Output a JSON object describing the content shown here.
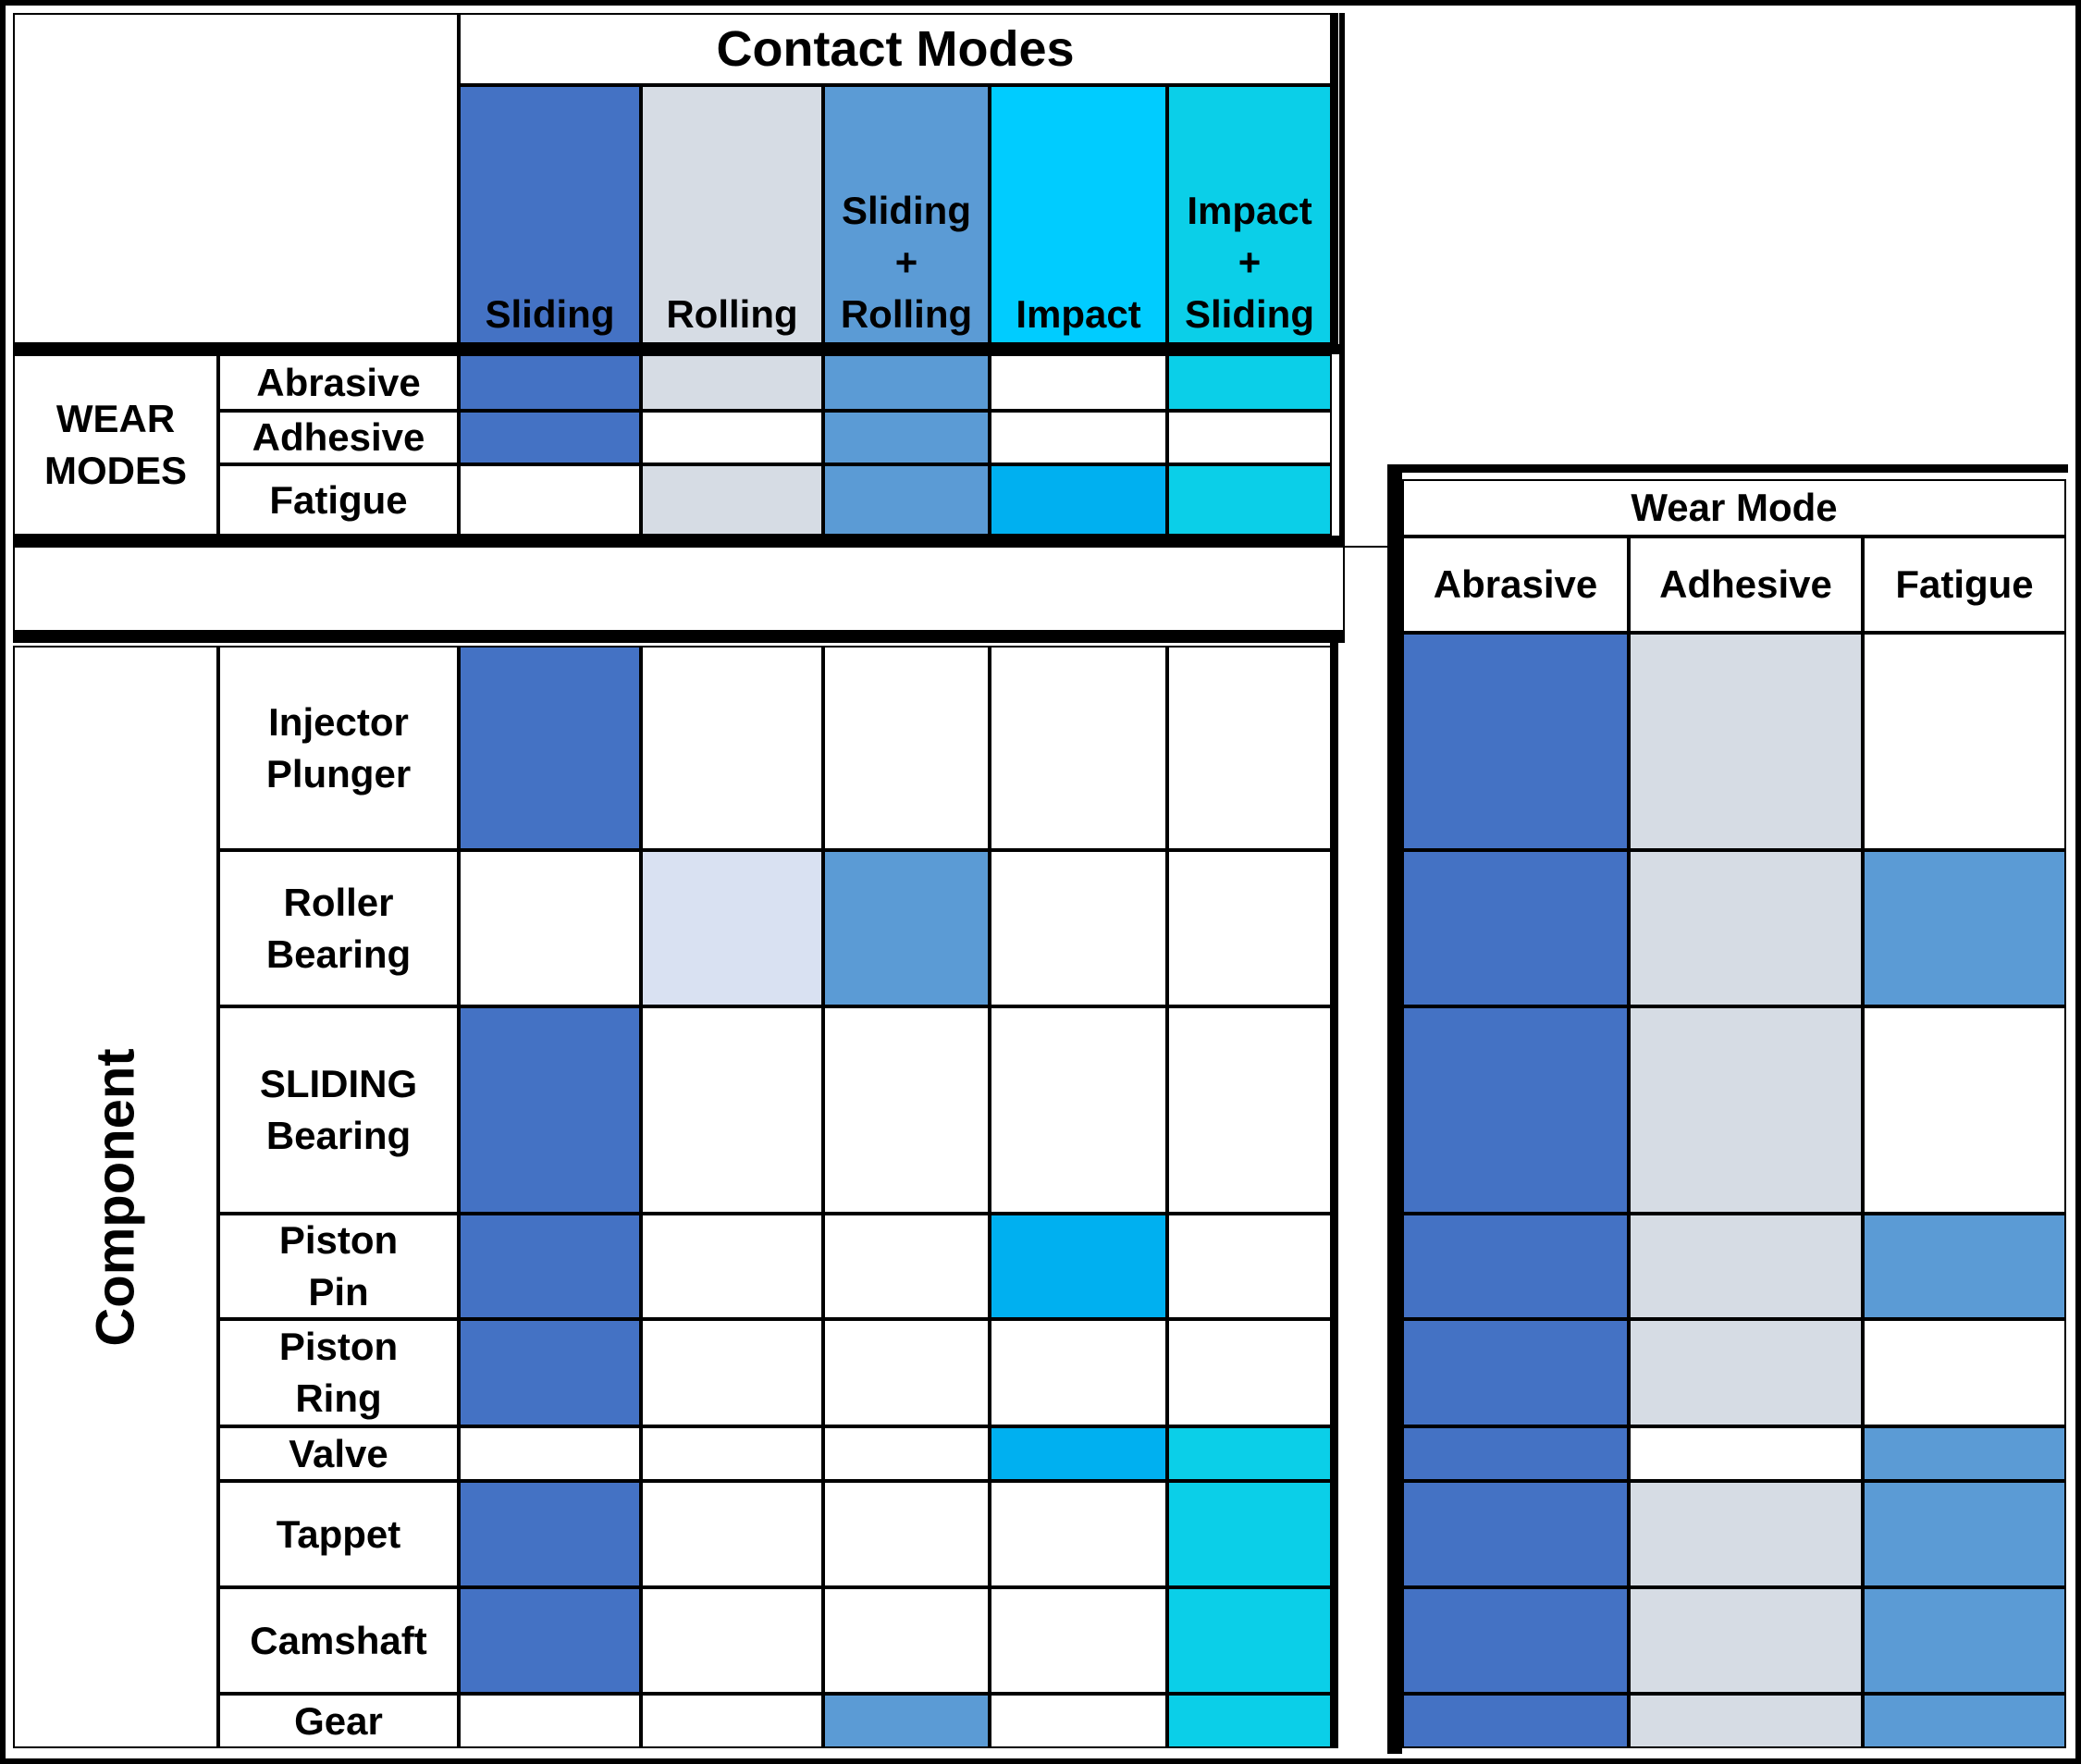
{
  "colors": {
    "sliding": "#4472C4",
    "rolling": "#D6DCE4",
    "rolling_light": "#D9E1F2",
    "sliding_rolling": "#5B9BD5",
    "impact": "#00CCFF",
    "impact_cell": "#00B0F0",
    "impact_sliding": "#0BCFE8",
    "none": "#FFFFFF"
  },
  "contact_modes": {
    "title": "Contact Modes",
    "columns": [
      {
        "key": "sliding",
        "lines": [
          "Sliding"
        ]
      },
      {
        "key": "rolling",
        "lines": [
          "Rolling"
        ]
      },
      {
        "key": "sliding_rolling",
        "lines": [
          "Sliding",
          "+",
          "Rolling"
        ]
      },
      {
        "key": "impact",
        "lines": [
          "Impact"
        ]
      },
      {
        "key": "impact_sliding",
        "lines": [
          "Impact",
          "+",
          "Sliding"
        ]
      }
    ]
  },
  "wear_modes": {
    "label_lines": [
      "WEAR",
      "MODES"
    ],
    "rows": [
      {
        "name": "Abrasive",
        "cells": [
          "sliding",
          "rolling",
          "sliding_rolling",
          "none",
          "impact_sliding"
        ]
      },
      {
        "name": "Adhesive",
        "cells": [
          "sliding",
          "none",
          "sliding_rolling",
          "none",
          "none"
        ]
      },
      {
        "name": "Fatigue",
        "cells": [
          "none",
          "rolling",
          "sliding_rolling",
          "impact_cell",
          "impact_sliding"
        ]
      }
    ]
  },
  "components": {
    "label": "Component",
    "rows": [
      {
        "lines": [
          "Injector",
          "Plunger"
        ],
        "contact": [
          "sliding",
          "none",
          "none",
          "none",
          "none"
        ],
        "wear": [
          "sliding",
          "rolling",
          "none"
        ]
      },
      {
        "lines": [
          "Roller",
          "Bearing"
        ],
        "contact": [
          "none",
          "rolling_light",
          "sliding_rolling",
          "none",
          "none"
        ],
        "wear": [
          "sliding",
          "rolling",
          "sliding_rolling"
        ]
      },
      {
        "lines": [
          "SLIDING",
          "Bearing"
        ],
        "contact": [
          "sliding",
          "none",
          "none",
          "none",
          "none"
        ],
        "wear": [
          "sliding",
          "rolling",
          "none"
        ]
      },
      {
        "lines": [
          "Piston",
          "Pin"
        ],
        "contact": [
          "sliding",
          "none",
          "none",
          "impact_cell",
          "none"
        ],
        "wear": [
          "sliding",
          "rolling",
          "sliding_rolling"
        ]
      },
      {
        "lines": [
          "Piston",
          "Ring"
        ],
        "contact": [
          "sliding",
          "none",
          "none",
          "none",
          "none"
        ],
        "wear": [
          "sliding",
          "rolling",
          "none"
        ]
      },
      {
        "lines": [
          "Valve"
        ],
        "contact": [
          "none",
          "none",
          "none",
          "impact_cell",
          "impact_sliding"
        ],
        "wear": [
          "sliding",
          "none",
          "sliding_rolling"
        ]
      },
      {
        "lines": [
          "Tappet"
        ],
        "contact": [
          "sliding",
          "none",
          "none",
          "none",
          "impact_sliding"
        ],
        "wear": [
          "sliding",
          "rolling",
          "sliding_rolling"
        ]
      },
      {
        "lines": [
          "Camshaft"
        ],
        "contact": [
          "sliding",
          "none",
          "none",
          "none",
          "impact_sliding"
        ],
        "wear": [
          "sliding",
          "rolling",
          "sliding_rolling"
        ]
      },
      {
        "lines": [
          "Gear"
        ],
        "contact": [
          "none",
          "none",
          "sliding_rolling",
          "none",
          "impact_sliding"
        ],
        "wear": [
          "sliding",
          "rolling",
          "sliding_rolling"
        ]
      }
    ]
  },
  "wear_mode_panel": {
    "title": "Wear Mode",
    "columns": [
      "Abrasive",
      "Adhesive",
      "Fatigue"
    ]
  }
}
